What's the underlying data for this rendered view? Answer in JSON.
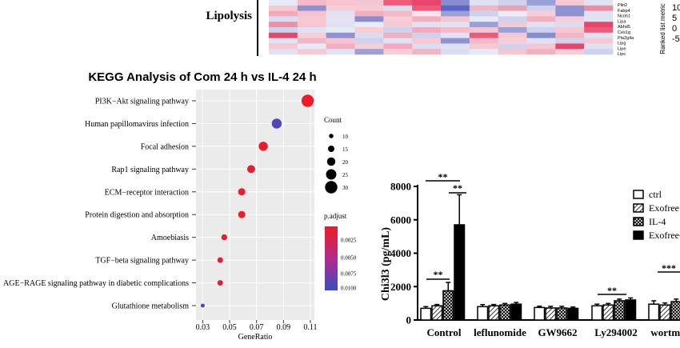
{
  "heatmap": {
    "label": "Lipolysis",
    "genes": [
      "Plin2",
      "Fabp4",
      "Ncoh1",
      "Lipa",
      "Abhd5",
      "Ces1g",
      "Pla2g4a",
      "Lipg",
      "Lipe",
      "Lipc"
    ],
    "side_tick_labels": [
      "10",
      "5",
      "0",
      "-5"
    ],
    "side_axis_label": "Ranked list metric",
    "colors": [
      [
        "#e6eaf7",
        "#f4b8c8",
        "#f7c4cf",
        "#f2c6d3",
        "#ee5c7b",
        "#e9446a",
        "#8a8cd0",
        "#dfe2f3",
        "#cfd2ee",
        "#9aa0d8",
        "#f6c8d2",
        "#dfe2f3"
      ],
      [
        "#f7c9d3",
        "#8d92d2",
        "#f7ced8",
        "#f7c9d3",
        "#dadcf0",
        "#ec5a7a",
        "#5c66c4",
        "#f2b5c4",
        "#eaa2b5",
        "#cfd2ee",
        "#8d92d2",
        "#ee8ca2"
      ],
      [
        "#f3aabc",
        "#f5c2ce",
        "#e0e2f4",
        "#f0b0c0",
        "#f3b9c6",
        "#fbe4ea",
        "#9aa0d8",
        "#cfd2ee",
        "#eeeaf8",
        "#f7ced8",
        "#8d92d2",
        "#e0e2f4"
      ],
      [
        "#dadcf0",
        "#f7c9d3",
        "#e9e0f2",
        "#8a8cd0",
        "#f7ced8",
        "#f0b0c0",
        "#f2c6d3",
        "#e6eaf7",
        "#cfd2ee",
        "#f0b0c0",
        "#f7ced8",
        "#e0e2f4"
      ],
      [
        "#ef90a7",
        "#f7c4cf",
        "#dfe2f3",
        "#e8eaf7",
        "#f7c9d3",
        "#dfe2f3",
        "#e0e2f4",
        "#9aa0d8",
        "#f6c8d2",
        "#e0e2f4",
        "#dadcf0",
        "#e9446a"
      ],
      [
        "#cfd2ee",
        "#dfe2f3",
        "#e6eaf7",
        "#f7ced8",
        "#cfd2ee",
        "#f3aabc",
        "#f3b9c6",
        "#f2c6d3",
        "#9aa0d8",
        "#cfd2ee",
        "#f6c8d2",
        "#ee5c7b"
      ],
      [
        "#e9446a",
        "#f7ced8",
        "#8d92d2",
        "#dadcf0",
        "#f0b0c0",
        "#cfd2ee",
        "#dfe2f3",
        "#ec5a7a",
        "#f6c8d2",
        "#8a8cd0",
        "#f2b5c4",
        "#e0e2f4"
      ],
      [
        "#dfe2f3",
        "#f2b5c4",
        "#f7c4cf",
        "#cfd2ee",
        "#e0e2f4",
        "#f7c9d3",
        "#8d92d2",
        "#f3b9c6",
        "#f7ced8",
        "#dfe2f3",
        "#cfd2ee",
        "#f7c9d3"
      ],
      [
        "#f6c8d2",
        "#e6eaf7",
        "#f0b0c0",
        "#f7ced8",
        "#f3aabc",
        "#dadcf0",
        "#e0e2f4",
        "#f7c9d3",
        "#cfd2ee",
        "#f2c6d3",
        "#e9446a",
        "#dfe2f3"
      ],
      [
        "#e0e2f4",
        "#f7c9d3",
        "#dfe2f3",
        "#9aa0d8",
        "#f7ced8",
        "#f2b5c4",
        "#dadcf0",
        "#e6eaf7",
        "#f7c4cf",
        "#f0b0c0",
        "#f7ced8",
        "#cfd2ee"
      ]
    ]
  },
  "chart_data": [
    {
      "type": "scatter",
      "title": "KEGG Analysis of Com 24 h vs IL-4 24 h",
      "xlabel": "GeneRatio",
      "ylabel": "",
      "xlim": [
        0.025,
        0.113
      ],
      "xticks": [
        0.03,
        0.05,
        0.07,
        0.09,
        0.11
      ],
      "grid": true,
      "points": [
        {
          "label": "PI3K−Akt signaling pathway",
          "x": 0.108,
          "count": 30,
          "p_adjust": 0.0001
        },
        {
          "label": "Human papillomavirus infection",
          "x": 0.085,
          "count": 24,
          "p_adjust": 0.0095
        },
        {
          "label": "Focal adhesion",
          "x": 0.075,
          "count": 22,
          "p_adjust": 0.0003
        },
        {
          "label": "Rap1 signaling pathway",
          "x": 0.066,
          "count": 19,
          "p_adjust": 0.0008
        },
        {
          "label": "ECM−receptor interaction",
          "x": 0.059,
          "count": 17,
          "p_adjust": 0.0002
        },
        {
          "label": "Protein digestion and absorption",
          "x": 0.059,
          "count": 17,
          "p_adjust": 0.0002
        },
        {
          "label": "Amoebiasis",
          "x": 0.046,
          "count": 14,
          "p_adjust": 0.0008
        },
        {
          "label": "TGF−beta signaling pathway",
          "x": 0.043,
          "count": 13,
          "p_adjust": 0.001
        },
        {
          "label": "AGE−RAGE signaling pathway in diabetic complications",
          "x": 0.043,
          "count": 13,
          "p_adjust": 0.0012
        },
        {
          "label": "Glutathione metabolism",
          "x": 0.03,
          "count": 9,
          "p_adjust": 0.01
        }
      ],
      "size_legend": {
        "title": "Count",
        "values": [
          10,
          15,
          20,
          25,
          30
        ]
      },
      "color_legend": {
        "title": "p.adjust",
        "ticks": [
          "0.0025",
          "0.0050",
          "0.0075",
          "0.0100"
        ],
        "low_color": "#ee1c25",
        "high_color": "#3b4cc0"
      }
    },
    {
      "type": "bar",
      "title": "",
      "xlabel": "",
      "ylabel": "Chi3l3 (pg/mL)",
      "ylim": [
        0,
        8000
      ],
      "yticks": [
        0,
        2000,
        4000,
        6000,
        8000
      ],
      "categories": [
        "Control",
        "leflunomide",
        "GW9662",
        "Ly294002",
        "wortma"
      ],
      "series": [
        {
          "name": "ctrl",
          "values": [
            700,
            800,
            750,
            850,
            950
          ],
          "errors": [
            100,
            120,
            80,
            100,
            200
          ]
        },
        {
          "name": "Exofree",
          "values": [
            850,
            850,
            720,
            900,
            900
          ],
          "errors": [
            80,
            80,
            100,
            90,
            120
          ]
        },
        {
          "name": "IL-4",
          "values": [
            1750,
            900,
            720,
            1150,
            1100
          ],
          "errors": [
            500,
            90,
            100,
            100,
            150
          ]
        },
        {
          "name": "Exofree-",
          "values": [
            5700,
            950,
            700,
            1200,
            1300
          ],
          "errors": [
            1800,
            100,
            80,
            120,
            200
          ]
        }
      ],
      "significance": [
        "**",
        "**",
        "**",
        "**",
        "***"
      ]
    }
  ]
}
